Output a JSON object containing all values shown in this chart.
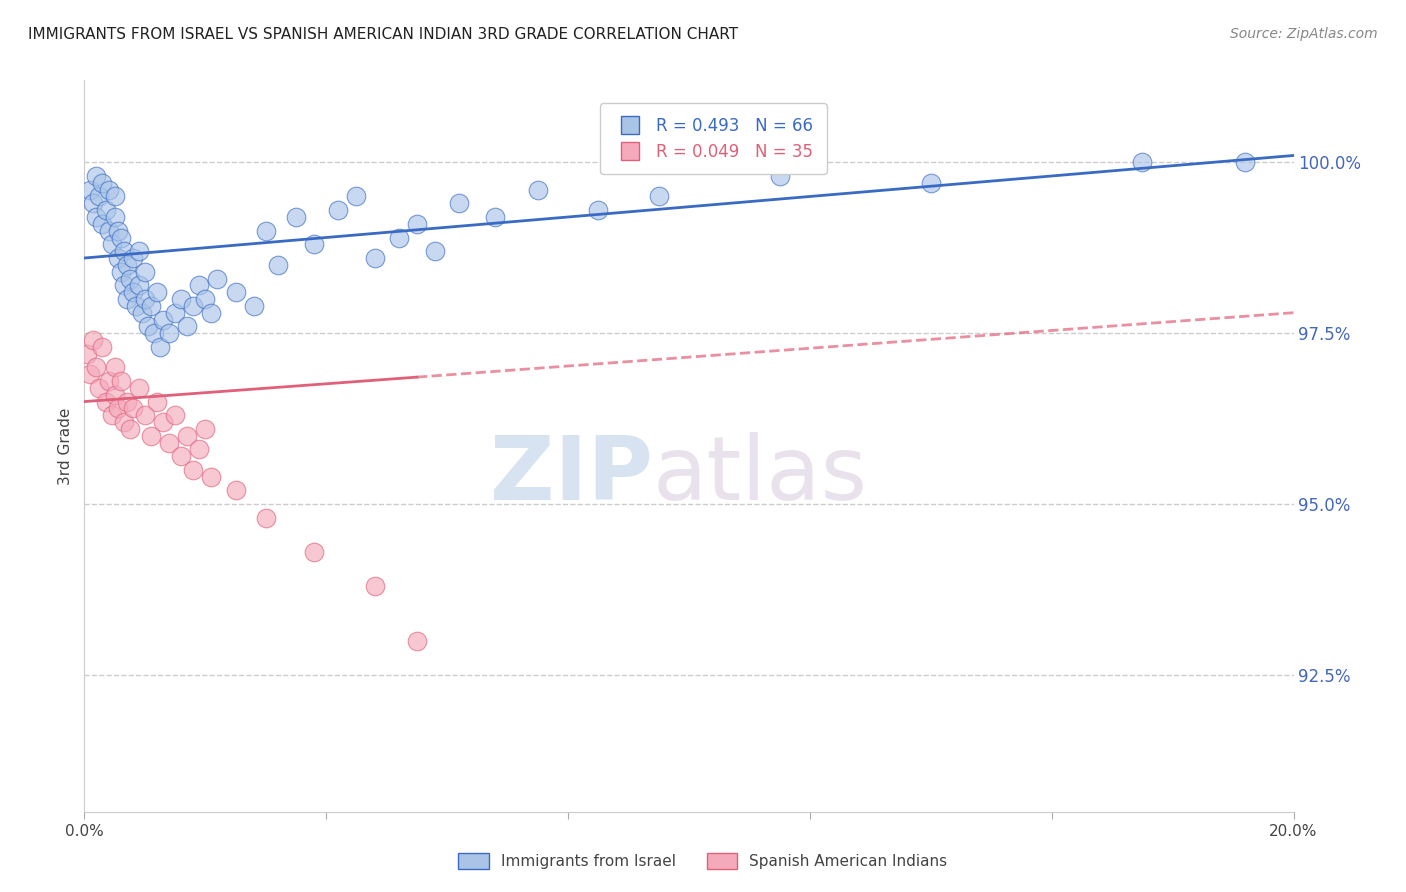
{
  "title": "IMMIGRANTS FROM ISRAEL VS SPANISH AMERICAN INDIAN 3RD GRADE CORRELATION CHART",
  "source": "Source: ZipAtlas.com",
  "ylabel": "3rd Grade",
  "xlim": [
    0.0,
    20.0
  ],
  "ylim": [
    90.5,
    101.2
  ],
  "yticks_right": [
    100.0,
    97.5,
    95.0,
    92.5
  ],
  "ytick_labels_right": [
    "100.0%",
    "97.5%",
    "95.0%",
    "92.5%"
  ],
  "legend_label_blue": "Immigrants from Israel",
  "legend_label_pink": "Spanish American Indians",
  "legend_R_blue": "R = 0.493",
  "legend_N_blue": "N = 66",
  "legend_R_pink": "R = 0.049",
  "legend_N_pink": "N = 35",
  "blue_color": "#aac4e8",
  "pink_color": "#f4aabb",
  "trend_blue_color": "#3a6bc4",
  "trend_pink_color": "#e0607a",
  "watermark_zip": "ZIP",
  "watermark_atlas": "atlas",
  "background_color": "#ffffff",
  "grid_color": "#cccccc",
  "right_tick_color": "#4466bb",
  "blue_scatter_x": [
    0.1,
    0.15,
    0.2,
    0.2,
    0.25,
    0.3,
    0.3,
    0.35,
    0.4,
    0.4,
    0.45,
    0.5,
    0.5,
    0.55,
    0.55,
    0.6,
    0.6,
    0.65,
    0.65,
    0.7,
    0.7,
    0.75,
    0.8,
    0.8,
    0.85,
    0.9,
    0.9,
    0.95,
    1.0,
    1.0,
    1.05,
    1.1,
    1.15,
    1.2,
    1.25,
    1.3,
    1.4,
    1.5,
    1.6,
    1.7,
    1.8,
    1.9,
    2.0,
    2.1,
    2.2,
    2.5,
    2.8,
    3.0,
    3.2,
    3.5,
    3.8,
    4.2,
    4.5,
    4.8,
    5.2,
    5.5,
    5.8,
    6.2,
    6.8,
    7.5,
    8.5,
    9.5,
    11.5,
    14.0,
    17.5,
    19.2
  ],
  "blue_scatter_y": [
    99.6,
    99.4,
    99.8,
    99.2,
    99.5,
    99.1,
    99.7,
    99.3,
    99.0,
    99.6,
    98.8,
    99.2,
    99.5,
    98.6,
    99.0,
    98.4,
    98.9,
    98.2,
    98.7,
    98.0,
    98.5,
    98.3,
    98.1,
    98.6,
    97.9,
    98.2,
    98.7,
    97.8,
    98.0,
    98.4,
    97.6,
    97.9,
    97.5,
    98.1,
    97.3,
    97.7,
    97.5,
    97.8,
    98.0,
    97.6,
    97.9,
    98.2,
    98.0,
    97.8,
    98.3,
    98.1,
    97.9,
    99.0,
    98.5,
    99.2,
    98.8,
    99.3,
    99.5,
    98.6,
    98.9,
    99.1,
    98.7,
    99.4,
    99.2,
    99.6,
    99.3,
    99.5,
    99.8,
    99.7,
    100.0,
    100.0
  ],
  "pink_scatter_x": [
    0.05,
    0.1,
    0.15,
    0.2,
    0.25,
    0.3,
    0.35,
    0.4,
    0.45,
    0.5,
    0.5,
    0.55,
    0.6,
    0.65,
    0.7,
    0.75,
    0.8,
    0.9,
    1.0,
    1.1,
    1.2,
    1.3,
    1.4,
    1.5,
    1.6,
    1.7,
    1.8,
    1.9,
    2.0,
    2.1,
    2.5,
    3.0,
    3.8,
    4.8,
    5.5
  ],
  "pink_scatter_y": [
    97.2,
    96.9,
    97.4,
    97.0,
    96.7,
    97.3,
    96.5,
    96.8,
    96.3,
    97.0,
    96.6,
    96.4,
    96.8,
    96.2,
    96.5,
    96.1,
    96.4,
    96.7,
    96.3,
    96.0,
    96.5,
    96.2,
    95.9,
    96.3,
    95.7,
    96.0,
    95.5,
    95.8,
    96.1,
    95.4,
    95.2,
    94.8,
    94.3,
    93.8,
    93.0
  ],
  "blue_trend_x0": 0.0,
  "blue_trend_y0": 98.6,
  "blue_trend_x1": 20.0,
  "blue_trend_y1": 100.1,
  "pink_trend_x0": 0.0,
  "pink_trend_y0": 96.5,
  "pink_trend_x1": 20.0,
  "pink_trend_y1": 97.8,
  "pink_solid_end_x": 5.5,
  "xtick_positions": [
    0.0,
    4.0,
    8.0,
    12.0,
    16.0,
    20.0
  ],
  "xtick_show_only_ends": true
}
